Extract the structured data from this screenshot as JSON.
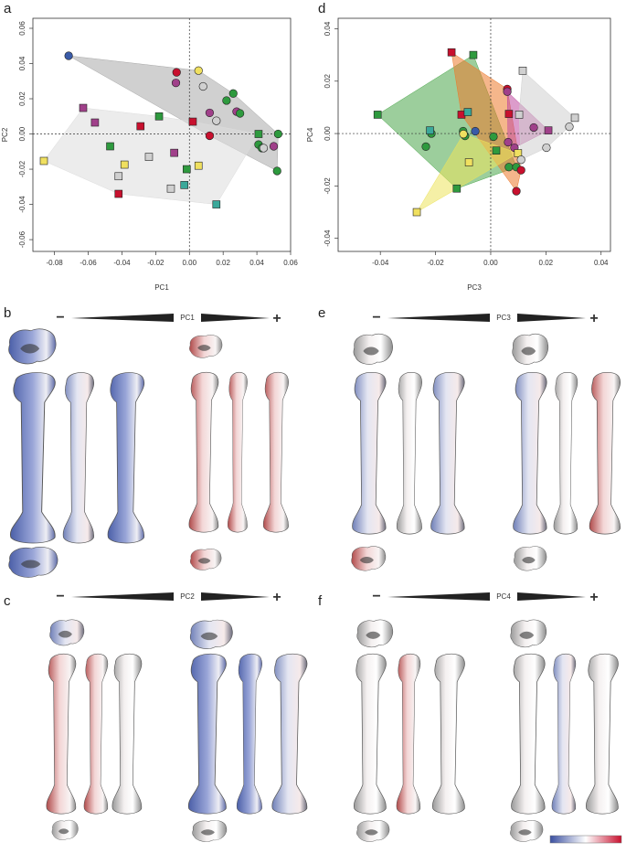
{
  "chart_data": [
    {
      "type": "scatter",
      "panel_label": "a",
      "x_label": "PC1",
      "y_label": "PC2",
      "xlim": [
        -0.0928,
        0.06
      ],
      "ylim": [
        -0.0667,
        0.0657
      ],
      "xticks": [
        -0.08,
        -0.06,
        -0.04,
        -0.02,
        {
          "value": 0,
          "label": "0.00"
        },
        0.02,
        0.04,
        0.06
      ],
      "yticks": [
        -0.06,
        -0.04,
        -0.02,
        {
          "value": 0,
          "label": "0.00"
        },
        0.02,
        0.04,
        0.06
      ],
      "zero_lines": true,
      "series": [
        {
          "color": "#3a5ba8",
          "marker": "circle",
          "hull": "#a9a9a9",
          "x": [
            -0.0716
          ],
          "values": [
            0.0444
          ]
        },
        {
          "color": "#c8102e",
          "marker": "circle",
          "hull": "#a9a9a9",
          "x": [
            -0.0076,
            0.012
          ],
          "values": [
            0.035,
            -0.001
          ]
        },
        {
          "color": "#a0408a",
          "marker": "circle",
          "hull": "#a9a9a9",
          "x": [
            -0.008,
            0.012,
            0.028,
            0.05
          ],
          "values": [
            0.029,
            0.012,
            0.0127,
            -0.007
          ]
        },
        {
          "color": "#2e9a3e",
          "marker": "circle",
          "hull": "#a9a9a9",
          "x": [
            0.022,
            0.026,
            0.03,
            0.041,
            0.0526,
            0.052,
            0.043
          ],
          "values": [
            0.019,
            0.023,
            0.0117,
            -0.006,
            0,
            -0.021,
            -0.008
          ]
        },
        {
          "color": "#f0e060",
          "marker": "circle",
          "hull": "#a9a9a9",
          "x": [
            0.0054
          ],
          "values": [
            0.036
          ]
        },
        {
          "color": "#d0d0d0",
          "marker": "circle",
          "hull": "#a9a9a9",
          "x": [
            0.0081,
            0.016,
            0.044
          ],
          "values": [
            0.027,
            0.0075,
            -0.008
          ]
        },
        {
          "color": "#c8102e",
          "marker": "square",
          "hull": "#dcdcdc",
          "x": [
            -0.029,
            0.002,
            -0.042
          ],
          "values": [
            0.0044,
            0.007,
            -0.034
          ]
        },
        {
          "color": "#2e9a3e",
          "marker": "square",
          "hull": "#dcdcdc",
          "x": [
            -0.018,
            -0.047,
            -0.0016,
            0.041
          ],
          "values": [
            0.01,
            -0.007,
            -0.02,
            0
          ]
        },
        {
          "color": "#a0408a",
          "marker": "square",
          "hull": "#dcdcdc",
          "x": [
            -0.063,
            -0.056,
            -0.009
          ],
          "values": [
            0.0148,
            0.0065,
            -0.0107
          ]
        },
        {
          "color": "#f0e060",
          "marker": "square",
          "hull": "#dcdcdc",
          "x": [
            -0.0863,
            -0.0385,
            0.0054
          ],
          "values": [
            -0.0153,
            -0.0174,
            -0.018
          ]
        },
        {
          "color": "#d0d0d0",
          "marker": "square",
          "hull": "#dcdcdc",
          "x": [
            -0.042,
            -0.024,
            -0.011
          ],
          "values": [
            -0.024,
            -0.013,
            -0.031
          ]
        },
        {
          "color": "#3aa89a",
          "marker": "square",
          "hull": "#dcdcdc",
          "x": [
            -0.003,
            0.016
          ],
          "values": [
            -0.029,
            -0.04
          ]
        }
      ]
    },
    {
      "type": "scatter",
      "panel_label": "d",
      "x_label": "PC3",
      "y_label": "PC4",
      "xlim": [
        -0.0553,
        0.0434
      ],
      "ylim": [
        -0.045,
        0.044
      ],
      "xticks": [
        -0.04,
        -0.02,
        {
          "value": 0,
          "label": "0.00"
        },
        0.02,
        0.04
      ],
      "yticks": [
        -0.04,
        -0.02,
        {
          "value": 0,
          "label": "0.00"
        },
        0.02,
        0.04
      ],
      "zero_lines": true,
      "series": [
        {
          "color": "#2e9a3e",
          "marker": "square",
          "hull": "#4aa64a",
          "x": [
            -0.041,
            -0.0063,
            -0.0123,
            0.002
          ],
          "values": [
            0.0072,
            0.03,
            -0.021,
            -0.0065
          ]
        },
        {
          "color": "#2e9a3e",
          "marker": "circle",
          "hull": "#4aa64a",
          "x": [
            -0.0235,
            -0.0215,
            -0.01,
            -0.0093,
            0.001,
            0.0066,
            0.0093
          ],
          "values": [
            -0.005,
            0,
            0.0009,
            -0.0009,
            -0.0012,
            -0.0128,
            -0.0128
          ]
        },
        {
          "color": "#c8102e",
          "marker": "square",
          "hull": "#ec7a2c",
          "x": [
            -0.0142,
            -0.0106,
            0.0066
          ],
          "values": [
            0.031,
            0.0072,
            0.0075
          ]
        },
        {
          "color": "#c8102e",
          "marker": "circle",
          "hull": "#ec7a2c",
          "x": [
            0.006,
            0.011,
            0.0093
          ],
          "values": [
            0.017,
            -0.014,
            -0.022
          ]
        },
        {
          "color": "#a0408a",
          "marker": "circle",
          "hull": "#c04aa0",
          "x": [
            0.006,
            0.0063,
            0.0156,
            0.0086
          ],
          "values": [
            0.016,
            -0.0033,
            0.0023,
            -0.0054
          ]
        },
        {
          "color": "#a0408a",
          "marker": "square",
          "hull": "#c04aa0",
          "x": [
            0.0209
          ],
          "values": [
            0.0012
          ]
        },
        {
          "color": "#f0e060",
          "marker": "square",
          "hull": "#ece35c",
          "x": [
            -0.0268,
            -0.0079,
            0.0099
          ],
          "values": [
            -0.03,
            -0.011,
            -0.0075
          ]
        },
        {
          "color": "#f0e060",
          "marker": "circle",
          "hull": "#ece35c",
          "x": [
            -0.0099
          ],
          "values": [
            -0.0002
          ]
        },
        {
          "color": "#d0d0d0",
          "marker": "square",
          "hull": "#cfcfcf",
          "x": [
            0.0116,
            0.0305,
            0.0103
          ],
          "values": [
            0.024,
            0.006,
            0.0072
          ]
        },
        {
          "color": "#d0d0d0",
          "marker": "circle",
          "hull": "#cfcfcf",
          "x": [
            0.0285,
            0.011,
            0.0202
          ],
          "values": [
            0.0026,
            -0.01,
            -0.0054
          ]
        },
        {
          "color": "#3a5ba8",
          "marker": "circle",
          "x": [
            -0.0056
          ],
          "values": [
            0.0009
          ]
        },
        {
          "color": "#3aa89a",
          "marker": "square",
          "x": [
            -0.022,
            -0.0083
          ],
          "values": [
            0.0012,
            0.0082
          ]
        }
      ]
    }
  ],
  "morphology_panels": [
    {
      "letter": "b",
      "axis": "PC1",
      "minus": "−",
      "plus": "+"
    },
    {
      "letter": "c",
      "axis": "PC2",
      "minus": "−",
      "plus": "+"
    },
    {
      "letter": "e",
      "axis": "PC3",
      "minus": "−",
      "plus": "+"
    },
    {
      "letter": "f",
      "axis": "PC4",
      "minus": "−",
      "plus": "+"
    }
  ]
}
